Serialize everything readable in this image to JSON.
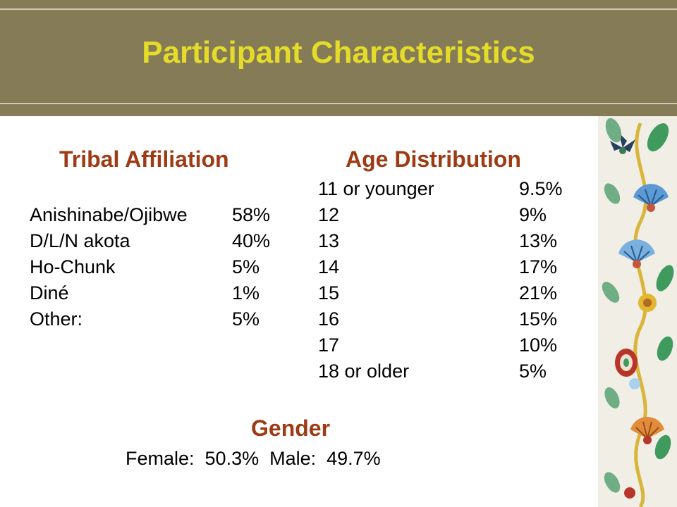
{
  "slide": {
    "title": "Participant Characteristics"
  },
  "tribal": {
    "heading": "Tribal Affiliation",
    "rows": [
      {
        "label": "Anishinabe/Ojibwe",
        "value": "58%"
      },
      {
        "label": "D/L/N akota",
        "value": "40%"
      },
      {
        "label": "Ho-Chunk",
        "value": "5%"
      },
      {
        "label": "Diné",
        "value": "1%"
      },
      {
        "label": "Other:",
        "value": "5%"
      }
    ]
  },
  "age": {
    "heading": "Age Distribution",
    "rows": [
      {
        "label": "11 or younger",
        "value": "9.5%"
      },
      {
        "label": "12",
        "value": "9%"
      },
      {
        "label": "13",
        "value": "13%"
      },
      {
        "label": "14",
        "value": "17%"
      },
      {
        "label": "15",
        "value": "21%"
      },
      {
        "label": "16",
        "value": "15%"
      },
      {
        "label": "17",
        "value": "10%"
      },
      {
        "label": "18 or older",
        "value": "5%"
      }
    ]
  },
  "gender": {
    "heading": "Gender",
    "text": "Female:  50.3%  Male:  49.7%"
  },
  "colors": {
    "header_bg": "#857c57",
    "title": "#e4dc28",
    "heading": "#9e3a14"
  },
  "decoration": {
    "icon": "floral-beadwork-border-icon"
  }
}
